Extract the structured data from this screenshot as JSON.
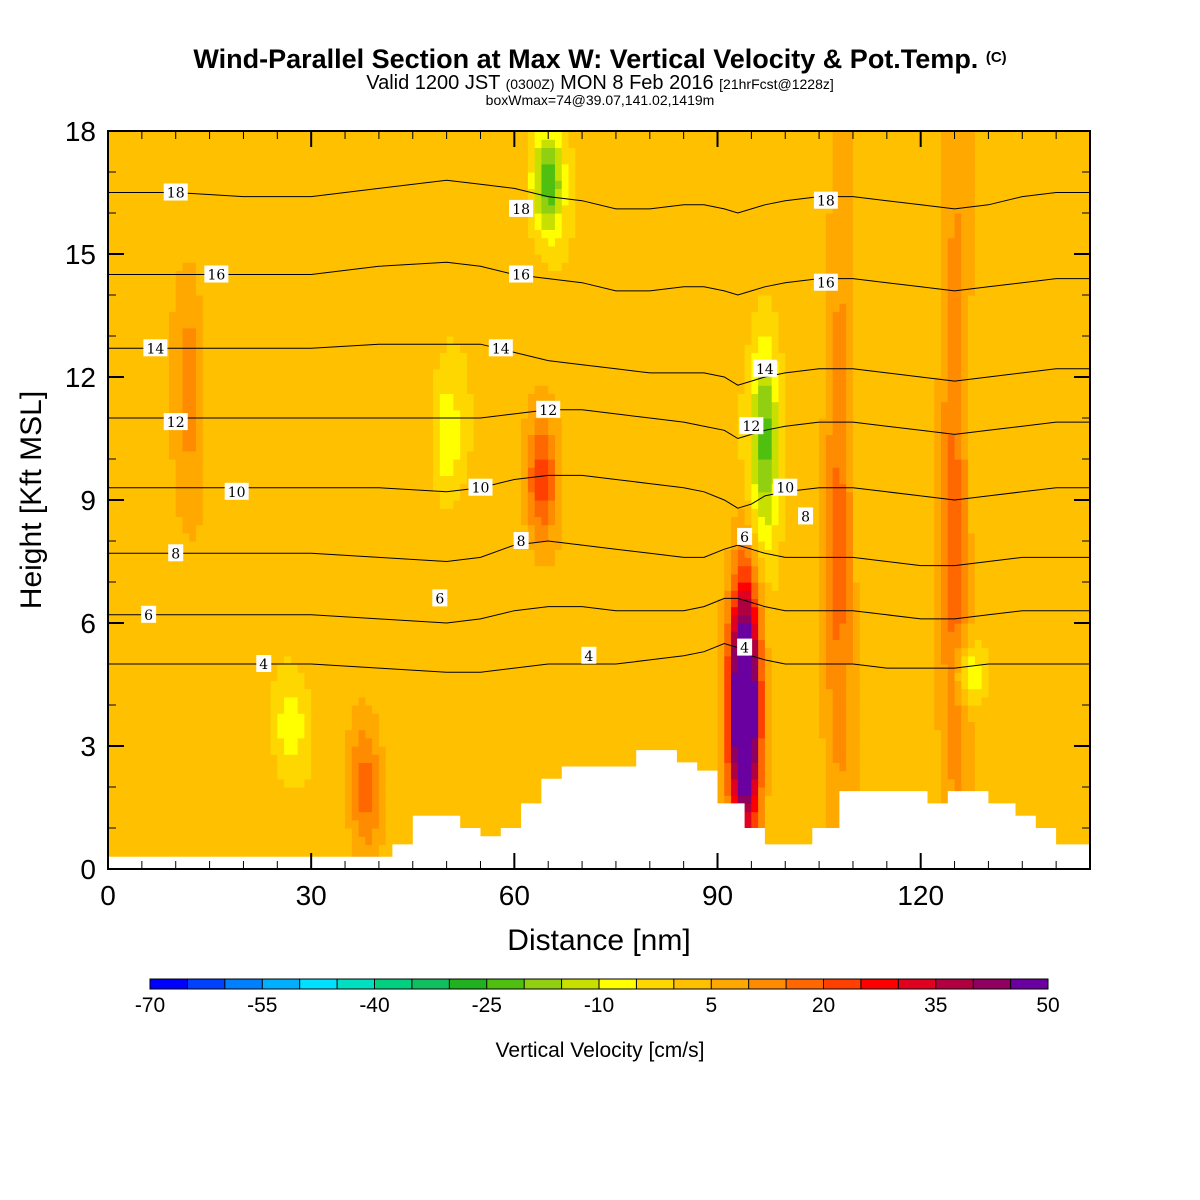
{
  "title": {
    "main": "Wind-Parallel Section at Max W: Vertical Velocity & Pot.Temp.",
    "copyright": "(C)",
    "valid_prefix": "Valid 1200 JST",
    "valid_utc": "(0300Z)",
    "valid_date": "MON 8 Feb 2016",
    "forecast": "[21hrFcst@1228z]",
    "box_info": "boxWmax=74@39.07,141.02,1419m"
  },
  "chart_data": {
    "type": "heatmap",
    "xlabel": "Distance [nm]",
    "ylabel": "Height [Kft MSL]",
    "xlim": [
      0,
      145
    ],
    "ylim": [
      0,
      18
    ],
    "xticks": [
      0,
      30,
      60,
      90,
      120
    ],
    "yticks": [
      0,
      3,
      6,
      9,
      12,
      15,
      18
    ],
    "colorbar": {
      "label": "Vertical Velocity [cm/s]",
      "min": -70,
      "max": 55,
      "step": 5,
      "tick_labels": [
        "-70",
        "-55",
        "-40",
        "-25",
        "-10",
        "5",
        "20",
        "35",
        "50"
      ],
      "colors": [
        "#0000ff",
        "#0040ff",
        "#0080ff",
        "#00b0ff",
        "#00e0ff",
        "#00e0c0",
        "#00d080",
        "#10c060",
        "#20b020",
        "#50c010",
        "#90d010",
        "#c8e000",
        "#ffff00",
        "#ffd700",
        "#ffc000",
        "#ffa800",
        "#ff8c00",
        "#ff6800",
        "#ff4000",
        "#ff0000",
        "#e00020",
        "#b00040",
        "#900060",
        "#6a00a0"
      ]
    },
    "vertical_velocity_features": [
      {
        "x": 94,
        "z_range": [
          1.0,
          7.0
        ],
        "w_peak": 74,
        "sign": "updraft"
      },
      {
        "x": 64,
        "z_range": [
          8.0,
          11.0
        ],
        "w_peak": 20,
        "sign": "updraft"
      },
      {
        "x": 38,
        "z_range": [
          0.5,
          3.5
        ],
        "w_peak": 15,
        "sign": "updraft"
      },
      {
        "x": 108,
        "z_range": [
          1.5,
          16.0
        ],
        "w_peak": 15,
        "sign": "updraft"
      },
      {
        "x": 125,
        "z_range": [
          0.5,
          18.0
        ],
        "w_peak": 15,
        "sign": "updraft"
      },
      {
        "x": 12,
        "z_range": [
          9.0,
          15.0
        ],
        "w_peak": 10,
        "sign": "updraft"
      },
      {
        "x": 97,
        "z_range": [
          8.0,
          13.0
        ],
        "w_peak": -25,
        "sign": "downdraft"
      },
      {
        "x": 65,
        "z_range": [
          15.5,
          18.0
        ],
        "w_peak": -25,
        "sign": "downdraft"
      },
      {
        "x": 50,
        "z_range": [
          9.0,
          12.0
        ],
        "w_peak": -12,
        "sign": "downdraft"
      },
      {
        "x": 127,
        "z_range": [
          4.0,
          5.5
        ],
        "w_peak": -15,
        "sign": "downdraft"
      },
      {
        "x": 27,
        "z_range": [
          2.5,
          4.5
        ],
        "w_peak": -10,
        "sign": "downdraft"
      }
    ],
    "terrain": {
      "x": [
        0,
        42,
        42,
        45,
        45,
        52,
        52,
        55,
        55,
        58,
        58,
        61,
        61,
        64,
        64,
        67,
        67,
        78,
        78,
        84,
        84,
        87,
        87,
        90,
        90,
        94,
        94,
        97,
        97,
        104,
        104,
        108,
        108,
        121,
        121,
        124,
        124,
        130,
        130,
        134,
        134,
        137,
        137,
        140,
        140,
        145
      ],
      "z": [
        0.3,
        0.3,
        0.6,
        0.6,
        1.3,
        1.3,
        1.0,
        1.0,
        0.8,
        0.8,
        1.0,
        1.0,
        1.6,
        1.6,
        2.2,
        2.2,
        2.5,
        2.5,
        2.9,
        2.9,
        2.6,
        2.6,
        2.4,
        2.4,
        1.6,
        1.6,
        1.0,
        1.0,
        0.6,
        0.6,
        1.0,
        1.0,
        1.9,
        1.9,
        1.6,
        1.6,
        1.9,
        1.9,
        1.6,
        1.6,
        1.3,
        1.3,
        1.0,
        1.0,
        0.6,
        0.6
      ]
    },
    "pot_temp_isentropes_C": {
      "x": [
        0,
        10,
        20,
        30,
        40,
        50,
        55,
        60,
        65,
        70,
        75,
        80,
        85,
        88,
        91,
        93,
        95,
        97,
        100,
        105,
        110,
        115,
        120,
        125,
        130,
        135,
        140,
        145
      ],
      "lines": [
        {
          "theta": 18,
          "z": [
            16.5,
            16.5,
            16.4,
            16.4,
            16.6,
            16.8,
            16.7,
            16.6,
            16.4,
            16.3,
            16.1,
            16.1,
            16.2,
            16.2,
            16.1,
            16.0,
            16.1,
            16.2,
            16.3,
            16.4,
            16.4,
            16.3,
            16.2,
            16.1,
            16.2,
            16.4,
            16.5,
            16.5
          ]
        },
        {
          "theta": 16,
          "z": [
            14.5,
            14.5,
            14.5,
            14.5,
            14.7,
            14.8,
            14.7,
            14.5,
            14.4,
            14.3,
            14.1,
            14.1,
            14.2,
            14.2,
            14.1,
            14.0,
            14.1,
            14.2,
            14.3,
            14.4,
            14.4,
            14.3,
            14.2,
            14.1,
            14.2,
            14.3,
            14.4,
            14.4
          ]
        },
        {
          "theta": 14,
          "z": [
            12.7,
            12.7,
            12.7,
            12.7,
            12.8,
            12.8,
            12.8,
            12.6,
            12.4,
            12.3,
            12.2,
            12.1,
            12.1,
            12.1,
            12.0,
            11.8,
            11.9,
            12.0,
            12.1,
            12.2,
            12.2,
            12.1,
            12.0,
            11.9,
            12.0,
            12.1,
            12.2,
            12.2
          ]
        },
        {
          "theta": 12,
          "z": [
            11.0,
            11.0,
            11.0,
            11.0,
            11.0,
            11.0,
            11.0,
            11.1,
            11.2,
            11.2,
            11.1,
            11.0,
            10.9,
            10.8,
            10.7,
            10.5,
            10.6,
            10.7,
            10.8,
            10.9,
            10.9,
            10.8,
            10.7,
            10.6,
            10.7,
            10.8,
            10.9,
            10.9
          ]
        },
        {
          "theta": 10,
          "z": [
            9.3,
            9.3,
            9.3,
            9.3,
            9.3,
            9.2,
            9.3,
            9.5,
            9.6,
            9.6,
            9.5,
            9.4,
            9.3,
            9.2,
            9.0,
            8.8,
            8.9,
            9.1,
            9.2,
            9.3,
            9.3,
            9.2,
            9.1,
            9.0,
            9.1,
            9.2,
            9.3,
            9.3
          ]
        },
        {
          "theta": 8,
          "z": [
            7.7,
            7.7,
            7.7,
            7.7,
            7.6,
            7.5,
            7.6,
            7.9,
            8.0,
            7.9,
            7.8,
            7.7,
            7.6,
            7.6,
            7.8,
            7.9,
            7.8,
            7.7,
            7.6,
            7.6,
            7.6,
            7.5,
            7.4,
            7.4,
            7.5,
            7.6,
            7.6,
            7.6
          ]
        },
        {
          "theta": 6,
          "z": [
            6.2,
            6.2,
            6.2,
            6.2,
            6.1,
            6.0,
            6.1,
            6.3,
            6.4,
            6.4,
            6.3,
            6.3,
            6.3,
            6.4,
            6.6,
            6.6,
            6.5,
            6.4,
            6.3,
            6.3,
            6.3,
            6.2,
            6.1,
            6.1,
            6.2,
            6.3,
            6.3,
            6.3
          ]
        },
        {
          "theta": 4,
          "z": [
            5.0,
            5.0,
            5.0,
            5.0,
            4.9,
            4.8,
            4.8,
            4.9,
            5.0,
            5.0,
            5.0,
            5.1,
            5.2,
            5.3,
            5.5,
            5.4,
            5.2,
            5.1,
            5.0,
            5.0,
            5.0,
            4.9,
            4.9,
            4.9,
            5.0,
            5.0,
            5.0,
            5.0
          ]
        }
      ]
    },
    "isentrope_labels": [
      {
        "text": "18",
        "x": 10,
        "z": 16.5
      },
      {
        "text": "18",
        "x": 61,
        "z": 16.1
      },
      {
        "text": "18",
        "x": 106,
        "z": 16.3
      },
      {
        "text": "16",
        "x": 16,
        "z": 14.5
      },
      {
        "text": "16",
        "x": 61,
        "z": 14.5
      },
      {
        "text": "16",
        "x": 106,
        "z": 14.3
      },
      {
        "text": "14",
        "x": 7,
        "z": 12.7
      },
      {
        "text": "14",
        "x": 58,
        "z": 12.7
      },
      {
        "text": "14",
        "x": 97,
        "z": 12.2
      },
      {
        "text": "12",
        "x": 10,
        "z": 10.9
      },
      {
        "text": "12",
        "x": 65,
        "z": 11.2
      },
      {
        "text": "12",
        "x": 95,
        "z": 10.8
      },
      {
        "text": "10",
        "x": 19,
        "z": 9.2
      },
      {
        "text": "10",
        "x": 55,
        "z": 9.3
      },
      {
        "text": "10",
        "x": 100,
        "z": 9.3
      },
      {
        "text": "8",
        "x": 10,
        "z": 7.7
      },
      {
        "text": "8",
        "x": 61,
        "z": 8.0
      },
      {
        "text": "8",
        "x": 103,
        "z": 8.6
      },
      {
        "text": "6",
        "x": 6,
        "z": 6.2
      },
      {
        "text": "6",
        "x": 49,
        "z": 6.6
      },
      {
        "text": "6",
        "x": 94,
        "z": 8.1
      },
      {
        "text": "4",
        "x": 23,
        "z": 5.0
      },
      {
        "text": "4",
        "x": 71,
        "z": 5.2
      },
      {
        "text": "4",
        "x": 94,
        "z": 5.4
      }
    ]
  }
}
